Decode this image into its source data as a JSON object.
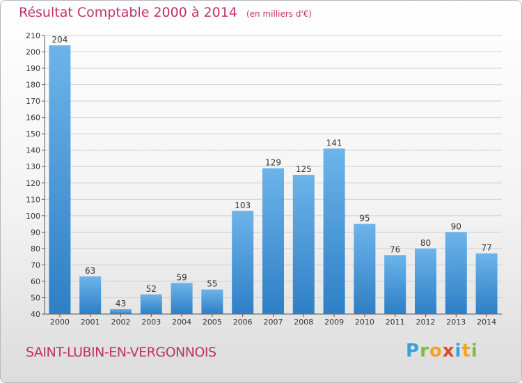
{
  "header": {
    "title": "Résultat Comptable 2000 à 2014",
    "subtitle": "(en milliers d'€)"
  },
  "footer": {
    "town": "SAINT-LUBIN-EN-VERGONNOIS",
    "brand": "Proxiti"
  },
  "colors": {
    "title": "#c0306a",
    "bar_top": "#6cb4ea",
    "bar_bottom": "#2e7fc6",
    "grid": "#d0d0d0"
  },
  "chart_data": {
    "type": "bar",
    "title": "Résultat Comptable 2000 à 2014",
    "subtitle": "(en milliers d'€)",
    "categories": [
      "2000",
      "2001",
      "2002",
      "2003",
      "2004",
      "2005",
      "2006",
      "2007",
      "2008",
      "2009",
      "2010",
      "2011",
      "2012",
      "2013",
      "2014"
    ],
    "values": [
      204,
      63,
      43,
      52,
      59,
      55,
      103,
      129,
      125,
      141,
      95,
      76,
      80,
      90,
      77
    ],
    "ylim": [
      40,
      210
    ],
    "yticks": [
      40,
      50,
      60,
      70,
      80,
      90,
      100,
      110,
      120,
      130,
      140,
      150,
      160,
      170,
      180,
      190,
      200,
      210
    ],
    "grid": true,
    "data_labels": true
  }
}
